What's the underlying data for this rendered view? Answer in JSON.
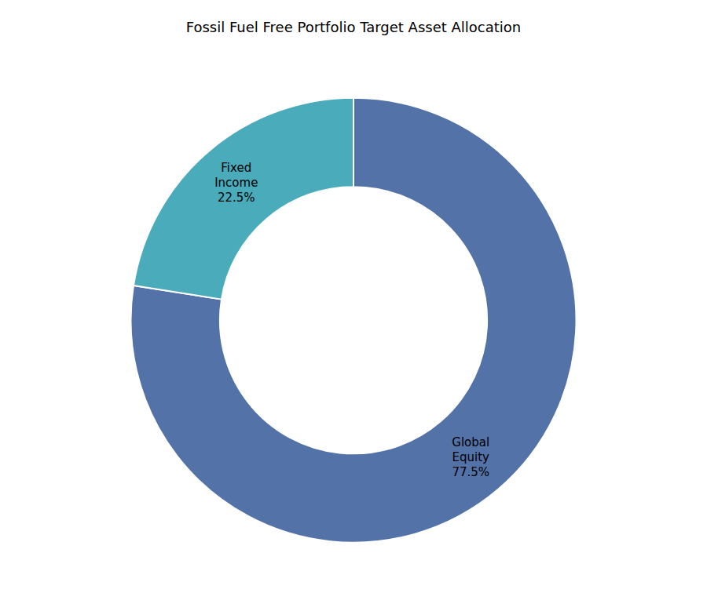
{
  "chart_data": {
    "type": "pie",
    "title": "Fossil Fuel Free Portfolio Target Asset Allocation",
    "categories": [
      "Global\nEquity\n77.5%",
      "Fixed\nIncome\n22.5%"
    ],
    "values": [
      77.5,
      22.5
    ],
    "colors": [
      "#5272A8",
      "#4AABBB"
    ],
    "legend": false
  }
}
